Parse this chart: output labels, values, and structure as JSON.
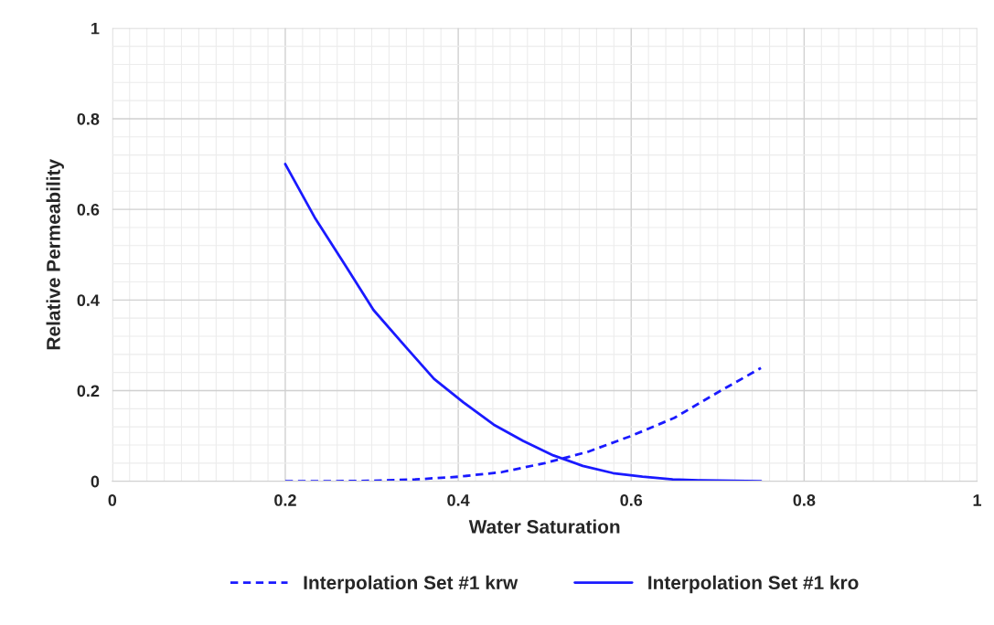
{
  "chart_data": {
    "type": "line",
    "xlabel": "Water Saturation",
    "ylabel": "Relative Permeability",
    "xlim": [
      0,
      1
    ],
    "ylim": [
      0,
      1
    ],
    "xticks": [
      0,
      0.2,
      0.4,
      0.6,
      0.8,
      1
    ],
    "yticks": [
      0,
      0.2,
      0.4,
      0.6,
      0.8,
      1
    ],
    "grid": true,
    "legend": "bottom",
    "marker": "none",
    "series": [
      {
        "name": "Interpolation Set #1 krw",
        "color": "#1a1aff",
        "line_style": "dashed",
        "x": [
          0.2,
          0.25,
          0.3,
          0.35,
          0.4,
          0.45,
          0.5,
          0.55,
          0.6,
          0.65,
          0.7,
          0.75
        ],
        "values": [
          0,
          0,
          0.001,
          0.004,
          0.01,
          0.02,
          0.04,
          0.065,
          0.1,
          0.14,
          0.196,
          0.25
        ]
      },
      {
        "name": "Interpolation Set #1 kro",
        "color": "#1a1aff",
        "line_style": "solid",
        "x": [
          0.2,
          0.235,
          0.27,
          0.302,
          0.339,
          0.372,
          0.406,
          0.441,
          0.475,
          0.51,
          0.544,
          0.579,
          0.613,
          0.648,
          0.681,
          0.716,
          0.75
        ],
        "values": [
          0.7,
          0.579,
          0.475,
          0.378,
          0.297,
          0.226,
          0.174,
          0.125,
          0.089,
          0.057,
          0.034,
          0.018,
          0.01,
          0.004,
          0.002,
          0.001,
          0
        ]
      }
    ]
  }
}
